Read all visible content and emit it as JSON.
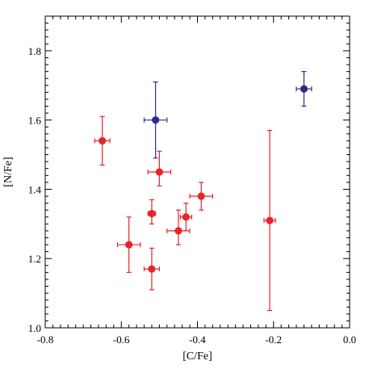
{
  "chart_data": {
    "type": "scatter",
    "title": "",
    "xlabel": "[C/Fe]",
    "ylabel": "[N/Fe]",
    "xlim": [
      -0.8,
      0.0
    ],
    "ylim": [
      1.0,
      1.9
    ],
    "x_ticks": [
      -0.8,
      -0.6,
      -0.4,
      -0.2,
      0.0
    ],
    "x_tick_labels": [
      "-0.8",
      "-0.6",
      "-0.4",
      "-0.2",
      "0.0"
    ],
    "y_ticks": [
      1.0,
      1.2,
      1.4,
      1.6,
      1.8
    ],
    "y_tick_labels": [
      "1.0",
      "1.2",
      "1.4",
      "1.6",
      "1.8"
    ],
    "grid": false,
    "series": [
      {
        "color": "#e8232a",
        "points": [
          {
            "x": -0.65,
            "y": 1.54,
            "xerr": 0.02,
            "yerr": [
              0.07,
              0.07
            ]
          },
          {
            "x": -0.5,
            "y": 1.45,
            "xerr": 0.03,
            "yerr": [
              0.04,
              0.06
            ]
          },
          {
            "x": -0.52,
            "y": 1.33,
            "xerr": 0.01,
            "yerr": [
              0.03,
              0.04
            ]
          },
          {
            "x": -0.58,
            "y": 1.24,
            "xerr": 0.03,
            "yerr": [
              0.08,
              0.08
            ]
          },
          {
            "x": -0.52,
            "y": 1.17,
            "xerr": 0.02,
            "yerr": [
              0.06,
              0.06
            ]
          },
          {
            "x": -0.45,
            "y": 1.28,
            "xerr": 0.03,
            "yerr": [
              0.04,
              0.06
            ]
          },
          {
            "x": -0.43,
            "y": 1.32,
            "xerr": 0.015,
            "yerr": [
              0.04,
              0.04
            ]
          },
          {
            "x": -0.39,
            "y": 1.38,
            "xerr": 0.03,
            "yerr": [
              0.04,
              0.04
            ]
          },
          {
            "x": -0.21,
            "y": 1.31,
            "xerr": 0.015,
            "yerr": [
              0.26,
              0.26
            ]
          }
        ]
      },
      {
        "color": "#2b2b8c",
        "points": [
          {
            "x": -0.51,
            "y": 1.6,
            "xerr": 0.03,
            "yerr": [
              0.11,
              0.11
            ]
          },
          {
            "x": -0.12,
            "y": 1.69,
            "xerr": 0.02,
            "yerr": [
              0.05,
              0.05
            ]
          }
        ]
      }
    ]
  }
}
